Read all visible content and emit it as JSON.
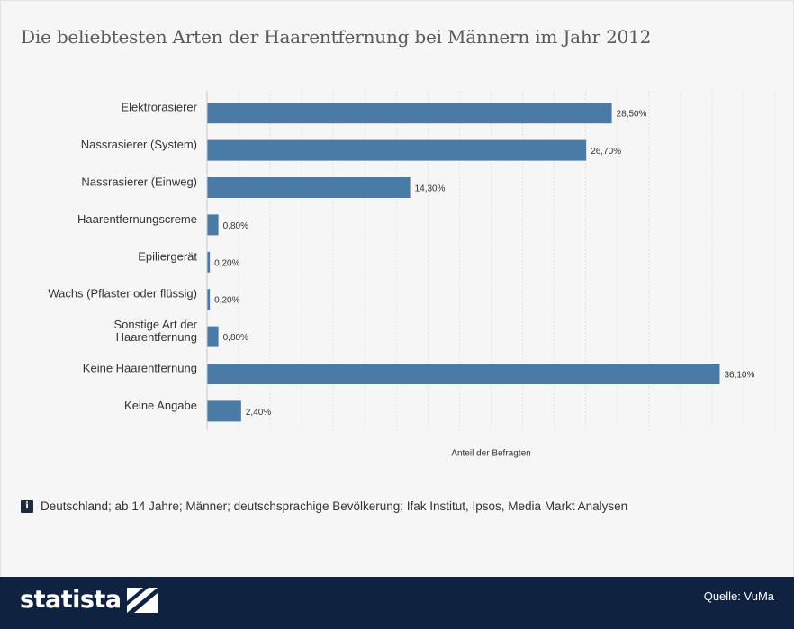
{
  "title": "Die beliebtesten Arten der Haarentfernung bei Männern im Jahr 2012",
  "chart_data": {
    "type": "bar",
    "orientation": "horizontal",
    "categories": [
      "Elektrorasierer",
      "Nassrasierer (System)",
      "Nassrasierer (Einweg)",
      "Haarentfernungscreme",
      "Epiliergerät",
      "Wachs (Pflaster oder flüssig)",
      "Sonstige Art der\nHaarentfernung",
      "Keine Haarentfernung",
      "Keine Angabe"
    ],
    "values": [
      28.5,
      26.7,
      14.3,
      0.8,
      0.2,
      0.2,
      0.8,
      36.1,
      2.4
    ],
    "value_labels": [
      "28,50%",
      "26,70%",
      "14,30%",
      "0,80%",
      "0,20%",
      "0,20%",
      "0,80%",
      "36,10%",
      "2,40%"
    ],
    "xlabel": "Anteil der Befragten",
    "xlim": [
      0,
      40
    ],
    "bar_color": "#4a7ba7",
    "grid": true
  },
  "note": "Deutschland; ab 14 Jahre; Männer; deutschsprachige Bevölkerung; Ifak Institut, Ipsos, Media Markt Analysen",
  "footer": {
    "brand": "statista",
    "source": "Quelle: VuMa",
    "background": "#0f2240"
  }
}
